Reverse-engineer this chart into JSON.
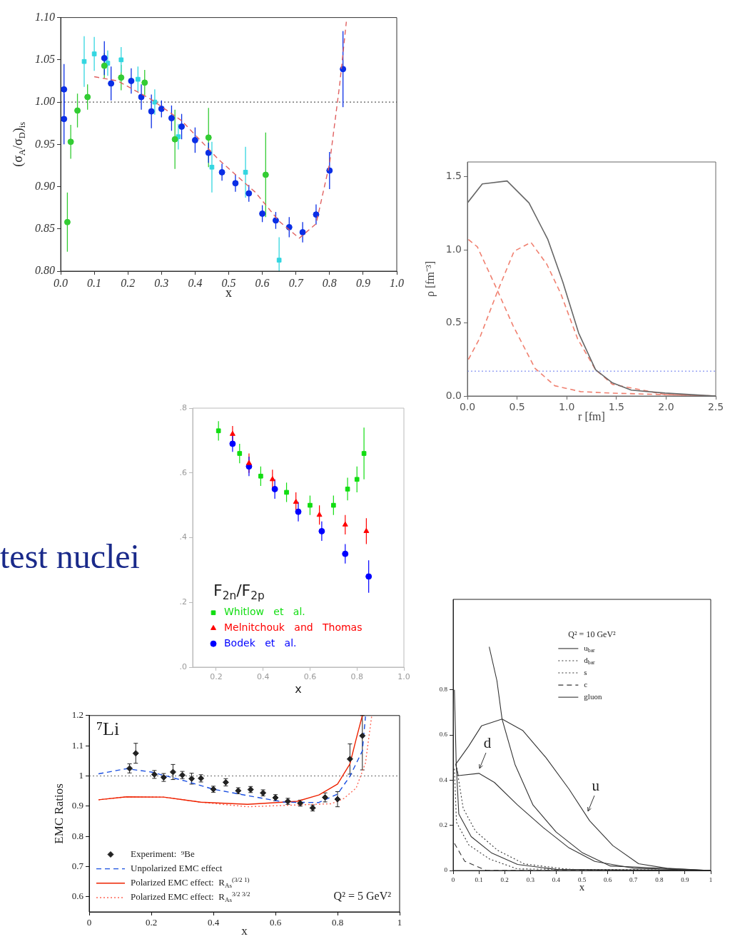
{
  "chart_data": [
    {
      "type": "scatter",
      "xlabel": "x",
      "ylabel": "(σ$_{A}$/σ$_{D}$)$_{is}$",
      "xlim": [
        0,
        1
      ],
      "xticks": [
        {
          "value": 0,
          "label": "0.0"
        },
        0.1,
        0.2,
        0.3,
        0.4,
        0.5,
        0.6,
        0.7,
        0.8,
        0.9,
        {
          "value": 1,
          "label": "1.0"
        }
      ],
      "ylim": [
        0.8,
        1.1
      ],
      "yticks": [
        {
          "value": 0.8,
          "label": "0.80"
        },
        0.85,
        {
          "value": 0.9,
          "label": "0.90"
        },
        0.95,
        {
          "value": 1,
          "label": "1.00"
        },
        1.05,
        {
          "value": 1.1,
          "label": "1.10"
        }
      ],
      "ref_lines": [
        {
          "axis": "y",
          "value": 1,
          "color": "#333333",
          "line_style": "dotted"
        }
      ],
      "series": [
        {
          "color": "#e06060",
          "type": "line",
          "line_style": "dashed",
          "x": [
            0.1,
            0.17,
            0.27,
            0.36,
            0.47,
            0.58,
            0.65,
            0.71,
            0.76,
            0.8,
            0.83,
            0.85
          ],
          "values": [
            1.03,
            1.025,
            1.003,
            0.978,
            0.932,
            0.893,
            0.859,
            0.839,
            0.856,
            0.927,
            1.02,
            1.095
          ]
        },
        {
          "color": "#33cc33",
          "marker": "circle",
          "x": [
            0.02,
            0.03,
            0.05,
            0.08,
            0.13,
            0.18,
            0.25,
            0.34,
            0.44,
            0.61
          ],
          "values": [
            0.858,
            0.953,
            0.99,
            1.006,
            1.043,
            1.029,
            1.023,
            0.956,
            0.958,
            0.914
          ],
          "errors": [
            0.035,
            0.02,
            0.02,
            0.015,
            0.015,
            0.015,
            0.015,
            0.035,
            0.035,
            0.05
          ]
        },
        {
          "color": "#33d6e0",
          "marker": "square",
          "x": [
            0.07,
            0.1,
            0.14,
            0.18,
            0.23,
            0.28,
            0.35,
            0.45,
            0.55,
            0.65
          ],
          "values": [
            1.048,
            1.057,
            1.046,
            1.05,
            1.027,
            1.0,
            0.959,
            0.923,
            0.917,
            0.813
          ],
          "errors": [
            0.03,
            0.02,
            0.015,
            0.015,
            0.015,
            0.015,
            0.015,
            0.03,
            0.03,
            [
              0.8,
              0.84
            ]
          ]
        },
        {
          "color": "#0a2ee6",
          "marker": "circle",
          "x": [
            0.01,
            0.01,
            0.13,
            0.15,
            0.21,
            0.24,
            0.27,
            0.3,
            0.33,
            0.36,
            0.4,
            0.44,
            0.48,
            0.52,
            0.56,
            0.6,
            0.64,
            0.68,
            0.72,
            0.76,
            0.8,
            0.84
          ],
          "values": [
            0.98,
            1.015,
            1.052,
            1.022,
            1.025,
            1.006,
            0.989,
            0.992,
            0.981,
            0.971,
            0.955,
            0.94,
            0.917,
            0.904,
            0.892,
            0.868,
            0.86,
            0.852,
            0.846,
            0.867,
            0.919,
            1.039
          ],
          "errors": [
            0.03,
            0.03,
            0.02,
            0.02,
            0.015,
            0.015,
            0.02,
            0.01,
            0.015,
            0.015,
            0.015,
            0.012,
            0.01,
            0.01,
            0.01,
            0.01,
            0.01,
            0.012,
            0.012,
            0.012,
            0.022,
            0.045
          ]
        }
      ]
    },
    {
      "type": "line",
      "xlabel": "r [fm]",
      "ylabel": "ρ [fm⁻³]",
      "xlim": [
        0,
        2.5
      ],
      "xticks": [
        {
          "value": 0,
          "label": "0.0"
        },
        0.5,
        {
          "value": 1,
          "label": "1.0"
        },
        1.5,
        {
          "value": 2,
          "label": "2.0"
        },
        2.5
      ],
      "ylim": [
        0,
        1.6
      ],
      "yticks": [
        {
          "value": 0,
          "label": "0.0"
        },
        0.5,
        {
          "value": 1,
          "label": "1.0"
        },
        1.5
      ],
      "ref_lines": [
        {
          "axis": "y",
          "value": 0.17,
          "color": "#6677ee",
          "line_style": "dotted"
        }
      ],
      "series": [
        {
          "color": "#666666",
          "x": [
            0,
            0.15,
            0.4,
            0.62,
            0.81,
            0.96,
            1.12,
            1.29,
            1.46,
            1.65,
            1.99,
            2.5
          ],
          "values": [
            1.32,
            1.45,
            1.47,
            1.32,
            1.07,
            0.78,
            0.43,
            0.18,
            0.09,
            0.04,
            0.02,
            0.0
          ]
        },
        {
          "color": "#f08070",
          "line_style": "dashed",
          "x": [
            0.01,
            0.1,
            0.29,
            0.46,
            0.68,
            0.88,
            1.14,
            1.44,
            2.5
          ],
          "values": [
            1.07,
            1.02,
            0.74,
            0.48,
            0.19,
            0.07,
            0.03,
            0.02,
            0.0
          ]
        },
        {
          "color": "#f08070",
          "line_style": "dashed",
          "x": [
            0.01,
            0.12,
            0.3,
            0.47,
            0.64,
            0.8,
            0.94,
            1.11,
            1.29,
            1.46,
            1.99,
            2.5
          ],
          "values": [
            0.25,
            0.39,
            0.71,
            0.99,
            1.05,
            0.9,
            0.7,
            0.39,
            0.18,
            0.08,
            0.01,
            0.0
          ]
        }
      ]
    },
    {
      "type": "scatter",
      "xlabel": "x",
      "legend": "bottom left",
      "legend_title": "F$_{2n}$/F$_{2p}$",
      "xlim": [
        0.1,
        1
      ],
      "xticks": [
        0.2,
        0.4,
        0.6,
        0.8,
        {
          "value": 1,
          "label": "1.0"
        }
      ],
      "ylim": [
        0,
        0.8
      ],
      "yticks": [
        {
          "value": 0,
          "label": ".0"
        },
        {
          "value": 0.2,
          "label": ".2"
        },
        {
          "value": 0.4,
          "label": ".4"
        },
        {
          "value": 0.6,
          "label": ".6"
        },
        {
          "value": 0.8,
          "label": ".8"
        }
      ],
      "series": [
        {
          "name": "Whitlow   et   al.",
          "color": "#11dd11",
          "marker": "square",
          "x": [
            0.21,
            0.3,
            0.39,
            0.5,
            0.6,
            0.7,
            0.76,
            0.8,
            0.83
          ],
          "values": [
            0.73,
            0.66,
            0.59,
            0.54,
            0.5,
            0.5,
            0.55,
            0.58,
            0.66
          ],
          "errors": [
            0.03,
            0.03,
            0.03,
            0.03,
            0.03,
            0.03,
            0.035,
            0.04,
            0.08
          ]
        },
        {
          "name": "Melnitchouk   and   Thomas",
          "color": "#ff0000",
          "marker": "triangle",
          "x": [
            0.27,
            0.34,
            0.44,
            0.54,
            0.64,
            0.75,
            0.84
          ],
          "values": [
            0.72,
            0.63,
            0.58,
            0.51,
            0.47,
            0.44,
            0.42
          ],
          "errors": [
            0.025,
            0.03,
            0.03,
            0.03,
            0.03,
            0.03,
            0.04
          ]
        },
        {
          "name": "Bodek   et   al.",
          "color": "#0000ff",
          "marker": "circle",
          "x": [
            0.27,
            0.34,
            0.45,
            0.55,
            0.65,
            0.75,
            0.85
          ],
          "values": [
            0.69,
            0.62,
            0.55,
            0.48,
            0.42,
            0.35,
            0.28
          ],
          "errors": [
            0.025,
            0.03,
            0.03,
            0.03,
            0.03,
            0.03,
            0.05
          ]
        }
      ]
    },
    {
      "type": "scatter",
      "xlabel": "x",
      "ylabel": "EMC Ratios",
      "legend": "bottom left",
      "annotations": [
        "⁷Li",
        "Q² = 5 GeV²"
      ],
      "xlim": [
        0,
        1
      ],
      "xticks": [
        0,
        0.2,
        0.4,
        0.6,
        0.8,
        1
      ],
      "ylim": [
        0.55,
        1.2
      ],
      "yticks": [
        0.6,
        0.7,
        0.8,
        0.9,
        1,
        1.1,
        1.2
      ],
      "ref_lines": [
        {
          "axis": "y",
          "value": 1,
          "color": "#666666",
          "line_style": "dotted"
        }
      ],
      "series": [
        {
          "name": "Experiment:  ⁹Be",
          "color": "#222222",
          "marker": "diamond",
          "x": [
            0.13,
            0.15,
            0.21,
            0.24,
            0.27,
            0.3,
            0.33,
            0.36,
            0.4,
            0.44,
            0.48,
            0.52,
            0.56,
            0.6,
            0.64,
            0.68,
            0.72,
            0.76,
            0.8,
            0.84,
            0.88
          ],
          "values": [
            1.025,
            1.075,
            1.005,
            0.995,
            1.013,
            1.003,
            0.991,
            0.992,
            0.956,
            0.979,
            0.951,
            0.955,
            0.944,
            0.928,
            0.916,
            0.91,
            0.894,
            0.929,
            0.923,
            1.056,
            1.133
          ],
          "errors": [
            0.015,
            0.033,
            0.013,
            0.013,
            0.025,
            0.012,
            0.018,
            0.012,
            0.01,
            0.012,
            0.01,
            0.01,
            0.01,
            0.01,
            0.01,
            0.01,
            0.01,
            0.015,
            0.025,
            0.05,
            [
              1.02,
              1.2
            ]
          ]
        },
        {
          "name": "Unpolarized EMC effect",
          "color": "#1a4fe0",
          "type": "line",
          "line_style": "dashed",
          "x": [
            0.03,
            0.12,
            0.2,
            0.31,
            0.4,
            0.51,
            0.63,
            0.74,
            0.8,
            0.84,
            0.88,
            0.89
          ],
          "values": [
            1.007,
            1.024,
            1.013,
            0.983,
            0.956,
            0.935,
            0.913,
            0.912,
            0.94,
            0.999,
            1.083,
            1.197
          ]
        },
        {
          "name": "Polarized EMC effect:  R$_{As}$$^{(3/2 1)}$",
          "color": "#ee2200",
          "type": "line",
          "x": [
            0.03,
            0.12,
            0.24,
            0.36,
            0.51,
            0.67,
            0.74,
            0.8,
            0.84,
            0.86,
            0.88
          ],
          "values": [
            0.921,
            0.931,
            0.93,
            0.913,
            0.906,
            0.916,
            0.937,
            0.973,
            1.04,
            1.122,
            1.2
          ]
        },
        {
          "name": "Polarized EMC effect:  R$_{As}$$^{3/2 3/2}$",
          "color": "#ff6655",
          "type": "line",
          "line_style": "dotted",
          "x": [
            0.03,
            0.12,
            0.24,
            0.36,
            0.51,
            0.67,
            0.78,
            0.82,
            0.86,
            0.89,
            0.91
          ],
          "values": [
            0.921,
            0.931,
            0.93,
            0.913,
            0.898,
            0.904,
            0.908,
            0.925,
            0.96,
            1.043,
            1.198
          ]
        }
      ]
    },
    {
      "type": "line",
      "xlabel": "x",
      "legend": "top",
      "legend_title": "Q² = 10 GeV²",
      "annotations": [
        {
          "text": "d",
          "x": 0.1,
          "y": 0.44
        },
        {
          "text": "u",
          "x": 0.52,
          "y": 0.25
        }
      ],
      "xlim": [
        0,
        1
      ],
      "xticks": [
        0,
        0.1,
        0.2,
        0.3,
        0.4,
        0.5,
        0.6,
        0.7,
        0.8,
        0.9,
        1
      ],
      "ylim": [
        0,
        1.2
      ],
      "yticks": [
        0,
        0.2,
        0.4,
        0.6,
        0.8
      ],
      "series": [
        {
          "name": "u$_{bar}$",
          "color": "#333333",
          "x": [
            0.005,
            0.012,
            0.022,
            0.07,
            0.15,
            0.25,
            0.4,
            1.0
          ],
          "values": [
            0.8,
            0.47,
            0.25,
            0.15,
            0.077,
            0.027,
            0.005,
            0.0
          ]
        },
        {
          "name": "d$_{bar}$",
          "color": "#333333",
          "line_style": "dotted",
          "x": [
            0.012,
            0.039,
            0.087,
            0.173,
            0.277,
            0.45,
            1.0
          ],
          "values": [
            0.47,
            0.275,
            0.174,
            0.089,
            0.029,
            0.005,
            0.0
          ]
        },
        {
          "name": "s",
          "color": "#333333",
          "line_style": "dotted",
          "x": [
            0.005,
            0.013,
            0.061,
            0.141,
            0.249,
            1.0
          ],
          "values": [
            0.45,
            0.213,
            0.113,
            0.051,
            0.007,
            0.0
          ]
        },
        {
          "name": "c",
          "color": "#333333",
          "line_style": "dashed",
          "x": [
            0.005,
            0.045,
            0.129,
            1.0
          ],
          "values": [
            0.12,
            0.041,
            0.0,
            0.0
          ]
        },
        {
          "name": "gluon",
          "color": "#333333",
          "x": [
            0.14,
            0.17,
            0.19,
            0.24,
            0.31,
            0.4,
            0.5,
            0.61,
            1.0
          ],
          "values": [
            0.99,
            0.84,
            0.67,
            0.47,
            0.29,
            0.17,
            0.08,
            0.02,
            0.0
          ]
        },
        {
          "color": "#333333",
          "x": [
            0.01,
            0.06,
            0.11,
            0.19,
            0.27,
            0.36,
            0.45,
            0.53,
            0.62,
            0.72,
            0.83,
            1.0
          ],
          "values": [
            0.47,
            0.55,
            0.64,
            0.67,
            0.62,
            0.5,
            0.36,
            0.22,
            0.11,
            0.03,
            0.01,
            0.0
          ]
        },
        {
          "color": "#333333",
          "x": [
            0.01,
            0.02,
            0.1,
            0.16,
            0.25,
            0.35,
            0.45,
            0.55,
            0.7,
            1.0
          ],
          "values": [
            0.47,
            0.42,
            0.43,
            0.39,
            0.29,
            0.19,
            0.1,
            0.04,
            0.01,
            0.0
          ]
        }
      ]
    },
    {
      "type": "other",
      "title": "test nuclei"
    }
  ]
}
